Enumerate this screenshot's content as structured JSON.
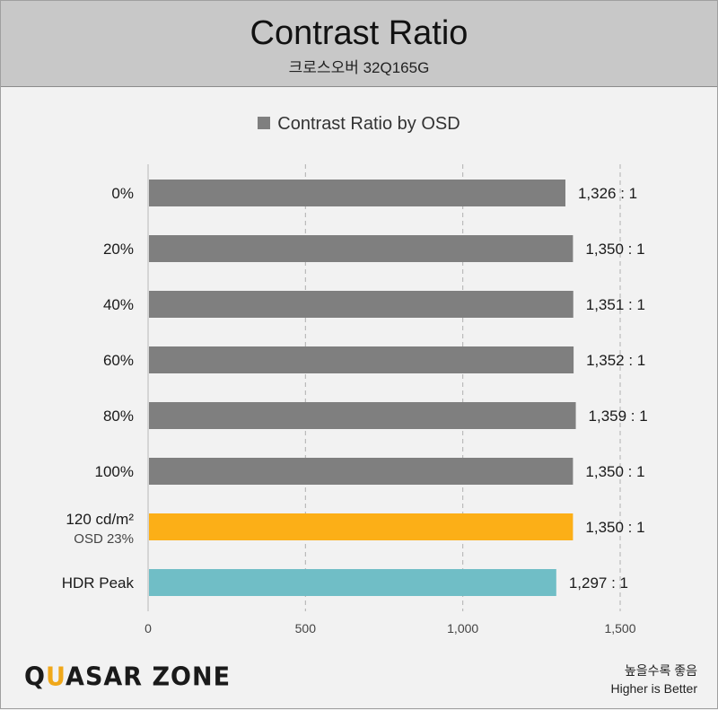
{
  "header": {
    "title": "Contrast Ratio",
    "subtitle": "크로스오버 32Q165G"
  },
  "legend": {
    "label": "Contrast Ratio by OSD"
  },
  "footer": {
    "logo_q": "Q",
    "logo_u": "U",
    "logo_rest": "ASAR ZONE",
    "note_ko": "높을수록 좋음",
    "note_en": "Higher is Better"
  },
  "colors": {
    "default_bar": "#7f7f7f",
    "highlight_bar": "#fcaf17",
    "hdr_bar": "#70bec6",
    "grid": "#b0b0b0"
  },
  "chart_data": {
    "type": "bar",
    "orientation": "horizontal",
    "title": "Contrast Ratio",
    "subtitle": "크로스오버 32Q165G",
    "categories": [
      {
        "label": "0%",
        "sublabel": "",
        "value": 1326,
        "value_label": "1,326 : 1",
        "color": "#7f7f7f"
      },
      {
        "label": "20%",
        "sublabel": "",
        "value": 1350,
        "value_label": "1,350 : 1",
        "color": "#7f7f7f"
      },
      {
        "label": "40%",
        "sublabel": "",
        "value": 1351,
        "value_label": "1,351 : 1",
        "color": "#7f7f7f"
      },
      {
        "label": "60%",
        "sublabel": "",
        "value": 1352,
        "value_label": "1,352 : 1",
        "color": "#7f7f7f"
      },
      {
        "label": "80%",
        "sublabel": "",
        "value": 1359,
        "value_label": "1,359 : 1",
        "color": "#7f7f7f"
      },
      {
        "label": "100%",
        "sublabel": "",
        "value": 1350,
        "value_label": "1,350 : 1",
        "color": "#7f7f7f"
      },
      {
        "label": "120 cd/m²",
        "sublabel": "OSD 23%",
        "value": 1350,
        "value_label": "1,350 : 1",
        "color": "#fcaf17"
      },
      {
        "label": "HDR Peak",
        "sublabel": "",
        "value": 1297,
        "value_label": "1,297 : 1",
        "color": "#70bec6"
      }
    ],
    "series": [
      {
        "name": "Contrast Ratio by OSD"
      }
    ],
    "xlim": [
      0,
      1500
    ],
    "xticks": [
      {
        "value": 0,
        "label": "0"
      },
      {
        "value": 500,
        "label": "500"
      },
      {
        "value": 1000,
        "label": "1,000"
      },
      {
        "value": 1500,
        "label": "1,500"
      }
    ],
    "grid": true,
    "legend_position": "top-center"
  }
}
